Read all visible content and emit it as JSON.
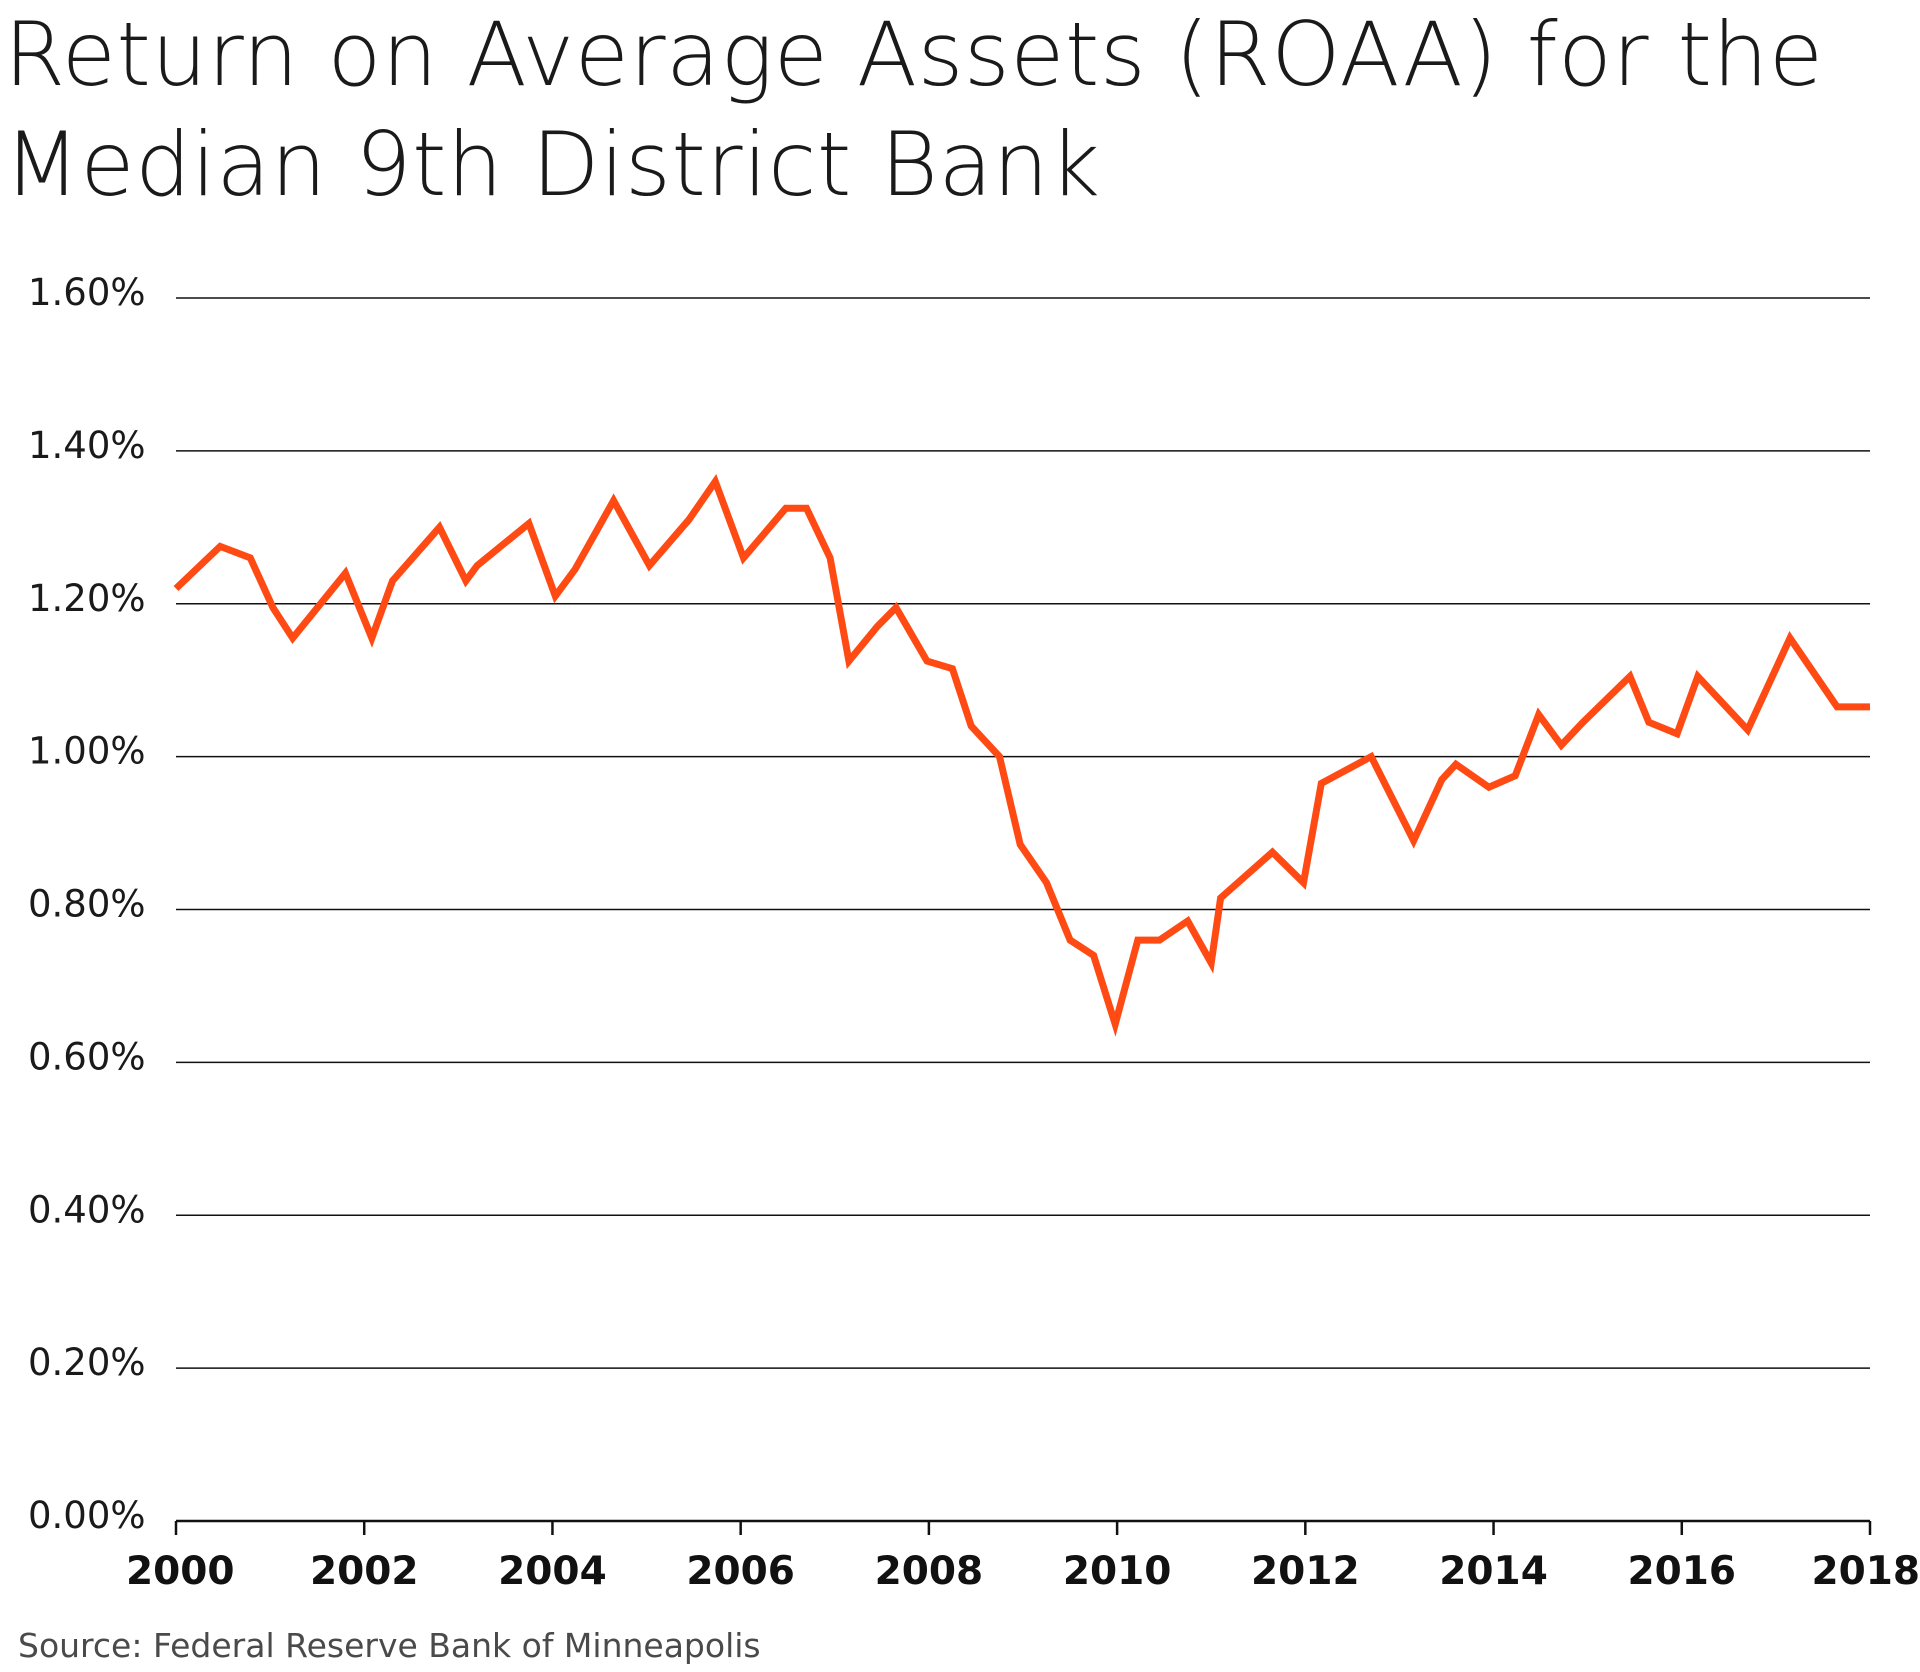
{
  "chart_data": {
    "type": "line",
    "title_lines": [
      "Return on Average Assets (ROAA) for the",
      "Median 9th District Bank"
    ],
    "xlabel": "",
    "ylabel": "",
    "source": "Source: Federal Reserve Bank of Minneapolis",
    "line_color": "#ff4a14",
    "grid_color": "#111111",
    "xlim": [
      2000,
      2018
    ],
    "ylim": [
      0.0,
      1.6
    ],
    "x_ticks": [
      2000,
      2002,
      2004,
      2006,
      2008,
      2010,
      2012,
      2014,
      2016,
      2018
    ],
    "x_tick_labels": [
      "2000",
      "2002",
      "2004",
      "2006",
      "2008",
      "2010",
      "2012",
      "2014",
      "2016",
      "2018"
    ],
    "y_ticks": [
      0.0,
      0.2,
      0.4,
      0.6,
      0.8,
      1.0,
      1.2,
      1.4,
      1.6
    ],
    "y_tick_labels": [
      "0.00%",
      "0.20%",
      "0.40%",
      "0.60%",
      "0.80%",
      "1.00%",
      "1.20%",
      "1.40%",
      "1.60%"
    ],
    "grid": true,
    "legend": "none",
    "series": [
      {
        "name": "ROAA",
        "x": [
          2000.0,
          2000.47,
          2000.79,
          2001.03,
          2001.24,
          2001.8,
          2002.08,
          2002.3,
          2002.8,
          2003.08,
          2003.2,
          2003.75,
          2004.03,
          2004.24,
          2004.65,
          2005.03,
          2005.45,
          2005.73,
          2006.03,
          2006.48,
          2006.7,
          2006.95,
          2007.15,
          2007.45,
          2007.65,
          2007.98,
          2008.25,
          2008.45,
          2008.75,
          2008.97,
          2009.25,
          2009.5,
          2009.75,
          2009.98,
          2010.22,
          2010.45,
          2010.75,
          2011.0,
          2011.1,
          2011.65,
          2011.98,
          2012.17,
          2012.7,
          2013.15,
          2013.45,
          2013.6,
          2013.95,
          2014.23,
          2014.48,
          2014.72,
          2014.95,
          2015.45,
          2015.65,
          2015.95,
          2016.17,
          2016.7,
          2017.15,
          2017.65,
          2018.0
        ],
        "values": [
          1.22,
          1.275,
          1.26,
          1.195,
          1.155,
          1.24,
          1.155,
          1.23,
          1.3,
          1.23,
          1.25,
          1.305,
          1.21,
          1.245,
          1.335,
          1.25,
          1.31,
          1.36,
          1.26,
          1.325,
          1.325,
          1.26,
          1.125,
          1.17,
          1.195,
          1.125,
          1.115,
          1.04,
          1.0,
          0.885,
          0.835,
          0.76,
          0.74,
          0.65,
          0.76,
          0.76,
          0.785,
          0.73,
          0.815,
          0.875,
          0.835,
          0.965,
          1.0,
          0.89,
          0.97,
          0.99,
          0.96,
          0.975,
          1.055,
          1.015,
          1.045,
          1.105,
          1.045,
          1.03,
          1.105,
          1.035,
          1.155,
          1.065,
          1.065
        ]
      }
    ]
  }
}
